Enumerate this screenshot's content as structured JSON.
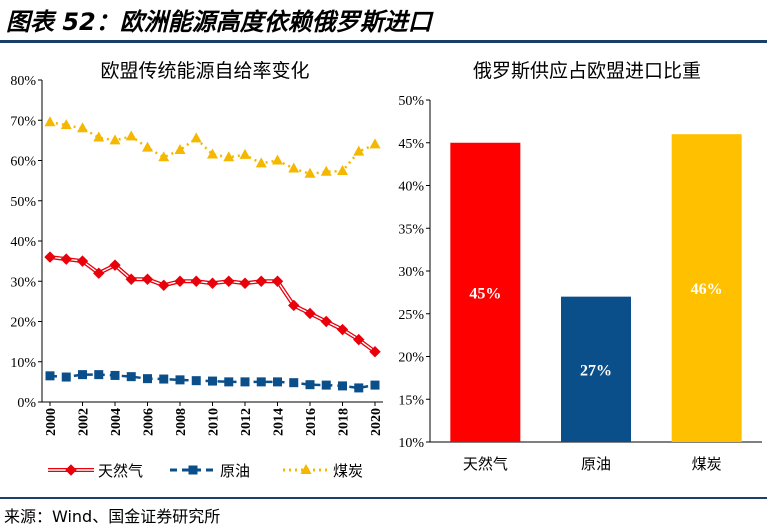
{
  "figure": {
    "title": "图表 52：欧洲能源高度依赖俄罗斯进口",
    "source": "来源：Wind、国金证券研究所"
  },
  "chart_data": [
    {
      "type": "line",
      "title": "欧盟传统能源自给率变化",
      "x": [
        2000,
        2001,
        2002,
        2003,
        2004,
        2005,
        2006,
        2007,
        2008,
        2009,
        2010,
        2011,
        2012,
        2013,
        2014,
        2015,
        2016,
        2017,
        2018,
        2019,
        2020
      ],
      "x_tick_labels": [
        "2000",
        "2002",
        "2004",
        "2006",
        "2008",
        "2010",
        "2012",
        "2014",
        "2016",
        "2018",
        "2020"
      ],
      "y_tick_labels": [
        "0%",
        "10%",
        "20%",
        "30%",
        "40%",
        "50%",
        "60%",
        "70%",
        "80%"
      ],
      "ylim": [
        0,
        80
      ],
      "series": [
        {
          "name": "天然气",
          "color": "#e8000b",
          "marker": "diamond",
          "style": "double-line",
          "values": [
            36,
            35.5,
            35,
            32,
            34,
            30.5,
            30.5,
            29,
            30,
            30,
            29.5,
            30,
            29.5,
            30,
            30,
            24,
            22,
            20,
            18,
            15.5,
            12.5
          ]
        },
        {
          "name": "原油",
          "color": "#0b4f8a",
          "marker": "square",
          "style": "dashed",
          "values": [
            6.5,
            6.2,
            6.8,
            6.8,
            6.6,
            6.3,
            5.8,
            5.7,
            5.5,
            5.3,
            5.2,
            5,
            5,
            5,
            5,
            4.8,
            4.3,
            4.2,
            4,
            3.5,
            4.2
          ]
        },
        {
          "name": "煤炭",
          "color": "#f5b800",
          "marker": "triangle",
          "style": "dotted",
          "values": [
            69.5,
            68.8,
            68,
            65.7,
            65,
            66,
            63.2,
            60.8,
            62.6,
            65.5,
            61.5,
            60.8,
            61.4,
            59.3,
            60,
            58,
            56.7,
            57.2,
            57.4,
            62.2,
            64
          ]
        }
      ],
      "legend_position": "bottom"
    },
    {
      "type": "bar",
      "title": "俄罗斯供应占欧盟进口比重",
      "categories": [
        "天然气",
        "原油",
        "煤炭"
      ],
      "values": [
        45,
        27,
        46
      ],
      "data_labels": [
        "45%",
        "27%",
        "46%"
      ],
      "colors": [
        "#ff0000",
        "#0b4f8a",
        "#ffc000"
      ],
      "y_tick_labels": [
        "10%",
        "15%",
        "20%",
        "25%",
        "30%",
        "35%",
        "40%",
        "45%",
        "50%"
      ],
      "ylim": [
        10,
        50
      ]
    }
  ]
}
